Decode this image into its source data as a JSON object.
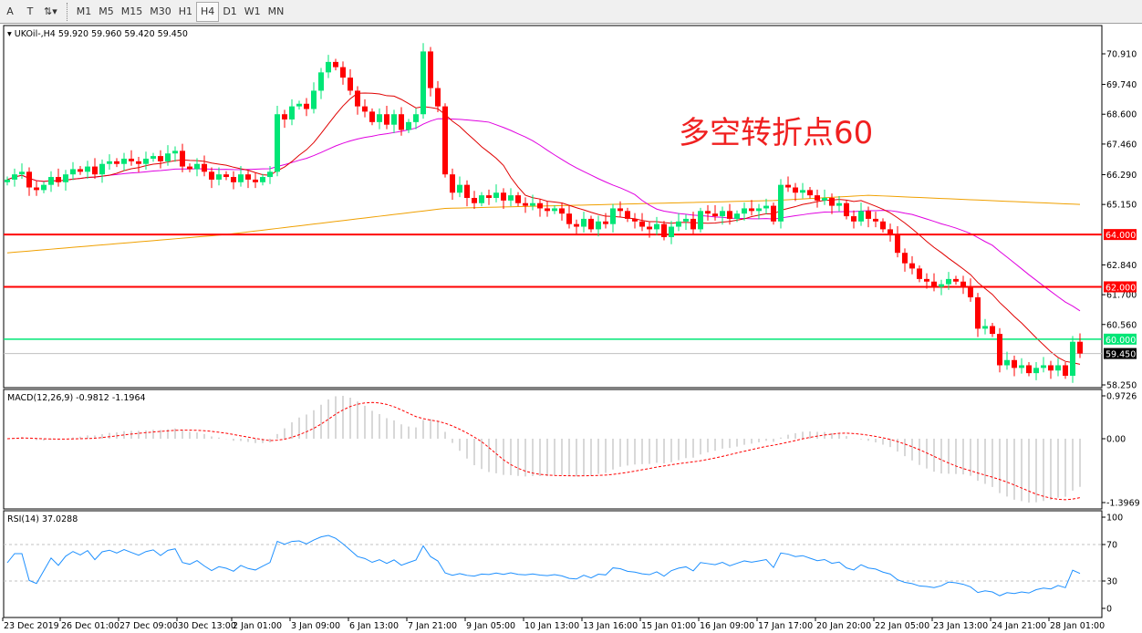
{
  "toolbar": {
    "tools": [
      "A",
      "T",
      "⇅▾"
    ],
    "timeframes": [
      "M1",
      "M5",
      "M15",
      "M30",
      "H1",
      "H4",
      "D1",
      "W1",
      "MN"
    ],
    "active": "H4"
  },
  "chart": {
    "symbol_label": "UKOil-,H4",
    "ohlc": "59.920 59.960 59.420 59.450",
    "annotation": "多空转折点60",
    "price_ticks": [
      "70.910",
      "69.740",
      "68.600",
      "67.460",
      "66.290",
      "65.150",
      "62.840",
      "61.700",
      "60.560",
      "58.250"
    ],
    "hlines": [
      {
        "label": "64.000",
        "value": 64.0,
        "color": "#ff0000"
      },
      {
        "label": "62.000",
        "value": 62.0,
        "color": "#ff0000"
      },
      {
        "label": "60.000",
        "value": 60.0,
        "color": "#00e676"
      }
    ],
    "current_price": "59.450",
    "colors": {
      "bull": "#00e676",
      "bear": "#ff0000",
      "ma_fast": "#e00000",
      "ma_mid": "#e000e0",
      "ma_slow": "#f0a000"
    }
  },
  "macd": {
    "label": "MACD(12,26,9) -0.9812 -1.1964",
    "ticks": [
      "0.9726",
      "0.00",
      "-1.3969"
    ]
  },
  "rsi": {
    "label": "RSI(14) 37.0288",
    "ticks": [
      "100",
      "70",
      "30",
      "0"
    ]
  },
  "xaxis": {
    "labels": [
      "23 Dec 2019",
      "26 Dec 01:00",
      "27 Dec 09:00",
      "30 Dec 13:00",
      "2 Jan 01:00",
      "3 Jan 09:00",
      "6 Jan 13:00",
      "7 Jan 21:00",
      "9 Jan 05:00",
      "10 Jan 13:00",
      "13 Jan 16:00",
      "15 Jan 01:00",
      "16 Jan 09:00",
      "17 Jan 17:00",
      "20 Jan 20:00",
      "22 Jan 05:00",
      "23 Jan 13:00",
      "24 Jan 21:00",
      "28 Jan 01:00"
    ]
  },
  "chart_data": {
    "type": "candlestick",
    "closes": [
      66.1,
      66.3,
      66.4,
      65.8,
      65.7,
      65.9,
      66.2,
      66.0,
      66.3,
      66.5,
      66.4,
      66.6,
      66.3,
      66.7,
      66.8,
      66.7,
      66.9,
      66.8,
      66.7,
      66.9,
      67.0,
      66.8,
      67.1,
      67.2,
      66.6,
      66.5,
      66.7,
      66.4,
      66.1,
      66.3,
      66.2,
      66.0,
      66.3,
      66.1,
      66.0,
      66.2,
      66.4,
      68.6,
      68.4,
      68.9,
      69.0,
      68.8,
      69.5,
      70.2,
      70.6,
      70.4,
      70.0,
      69.5,
      68.9,
      68.7,
      68.3,
      68.6,
      68.2,
      68.6,
      68.0,
      68.3,
      68.6,
      71.0,
      69.6,
      68.9,
      66.3,
      65.6,
      65.9,
      65.4,
      65.2,
      65.5,
      65.4,
      65.6,
      65.3,
      65.5,
      65.2,
      65.1,
      65.2,
      65.0,
      64.9,
      65.0,
      64.8,
      64.4,
      64.3,
      64.6,
      64.2,
      64.5,
      64.4,
      65.0,
      64.9,
      64.6,
      64.5,
      64.3,
      64.2,
      64.4,
      63.9,
      64.3,
      64.5,
      64.6,
      64.2,
      64.9,
      64.8,
      64.7,
      64.9,
      64.6,
      64.8,
      65.0,
      64.9,
      65.0,
      65.1,
      64.5,
      65.9,
      65.8,
      65.6,
      65.7,
      65.5,
      65.3,
      65.4,
      65.1,
      65.2,
      64.7,
      64.5,
      64.9,
      64.6,
      64.5,
      64.2,
      64.0,
      63.3,
      62.9,
      62.7,
      62.3,
      62.2,
      62.0,
      62.1,
      62.3,
      62.2,
      62.0,
      61.6,
      60.4,
      60.5,
      60.2,
      59.0,
      59.2,
      58.9,
      59.0,
      58.7,
      58.9,
      59.0,
      58.8,
      59.0,
      58.6,
      59.9,
      59.45
    ],
    "slow_ma_points": [
      [
        0,
        63.3
      ],
      [
        30,
        64.0
      ],
      [
        60,
        65.0
      ],
      [
        105,
        65.3
      ],
      [
        118,
        65.5
      ],
      [
        147,
        65.15
      ]
    ],
    "ylim": [
      58.25,
      70.91
    ]
  }
}
